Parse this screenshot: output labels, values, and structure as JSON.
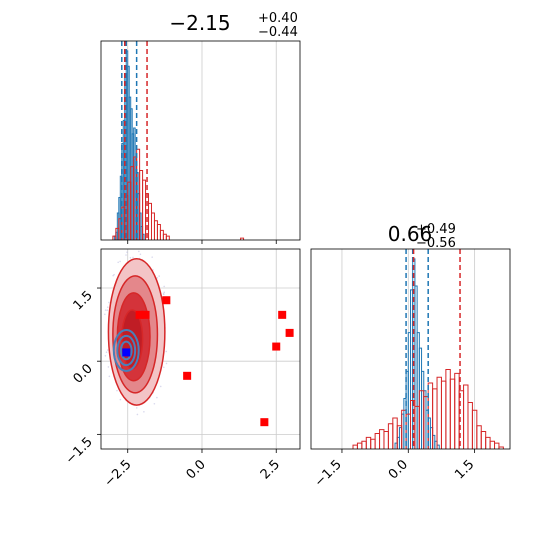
{
  "chart_data": [
    {
      "panel": "marginal-x",
      "type": "histogram",
      "title": {
        "value": "−2.15",
        "plus": "+0.40",
        "minus": "−0.44"
      },
      "xlim": [
        -3.4,
        3.3
      ],
      "xticks": [
        -2.5,
        0.0,
        2.5
      ],
      "series": [
        {
          "color": "#1f77b4",
          "bins": [
            {
              "x": -2.95,
              "w": 0.05,
              "h": 0.02
            },
            {
              "x": -2.9,
              "w": 0.05,
              "h": 0.04
            },
            {
              "x": -2.85,
              "w": 0.05,
              "h": 0.14
            },
            {
              "x": -2.8,
              "w": 0.05,
              "h": 0.22
            },
            {
              "x": -2.75,
              "w": 0.05,
              "h": 0.33
            },
            {
              "x": -2.7,
              "w": 0.05,
              "h": 0.5
            },
            {
              "x": -2.65,
              "w": 0.05,
              "h": 0.62
            },
            {
              "x": -2.6,
              "w": 0.05,
              "h": 0.85
            },
            {
              "x": -2.55,
              "w": 0.05,
              "h": 0.98
            },
            {
              "x": -2.5,
              "w": 0.05,
              "h": 0.9
            },
            {
              "x": -2.45,
              "w": 0.05,
              "h": 0.74
            },
            {
              "x": -2.4,
              "w": 0.05,
              "h": 0.68
            },
            {
              "x": -2.35,
              "w": 0.05,
              "h": 0.55
            },
            {
              "x": -2.3,
              "w": 0.05,
              "h": 0.58
            },
            {
              "x": -2.25,
              "w": 0.05,
              "h": 0.42
            },
            {
              "x": -2.2,
              "w": 0.05,
              "h": 0.35
            },
            {
              "x": -2.15,
              "w": 0.05,
              "h": 0.24
            },
            {
              "x": -2.1,
              "w": 0.05,
              "h": 0.14
            },
            {
              "x": -2.05,
              "w": 0.05,
              "h": 0.07
            },
            {
              "x": -2.0,
              "w": 0.05,
              "h": 0.03
            }
          ]
        },
        {
          "color": "#d62728",
          "bins": [
            {
              "x": -3.0,
              "w": 0.1,
              "h": 0.02
            },
            {
              "x": -2.9,
              "w": 0.1,
              "h": 0.06
            },
            {
              "x": -2.8,
              "w": 0.1,
              "h": 0.11
            },
            {
              "x": -2.7,
              "w": 0.1,
              "h": 0.17
            },
            {
              "x": -2.6,
              "w": 0.1,
              "h": 0.23
            },
            {
              "x": -2.5,
              "w": 0.1,
              "h": 0.3
            },
            {
              "x": -2.4,
              "w": 0.1,
              "h": 0.38
            },
            {
              "x": -2.3,
              "w": 0.1,
              "h": 0.43
            },
            {
              "x": -2.2,
              "w": 0.1,
              "h": 0.47
            },
            {
              "x": -2.1,
              "w": 0.1,
              "h": 0.36
            },
            {
              "x": -2.0,
              "w": 0.1,
              "h": 0.31
            },
            {
              "x": -1.9,
              "w": 0.1,
              "h": 0.24
            },
            {
              "x": -1.8,
              "w": 0.1,
              "h": 0.19
            },
            {
              "x": -1.7,
              "w": 0.1,
              "h": 0.14
            },
            {
              "x": -1.6,
              "w": 0.1,
              "h": 0.1
            },
            {
              "x": -1.5,
              "w": 0.1,
              "h": 0.08
            },
            {
              "x": -1.4,
              "w": 0.1,
              "h": 0.05
            },
            {
              "x": -1.3,
              "w": 0.1,
              "h": 0.03
            },
            {
              "x": -1.2,
              "w": 0.1,
              "h": 0.02
            },
            {
              "x": 1.3,
              "w": 0.1,
              "h": 0.01
            }
          ]
        }
      ],
      "vlines": [
        {
          "x": -2.7,
          "color": "#1f77b4"
        },
        {
          "x": -2.55,
          "color": "#1f77b4"
        },
        {
          "x": -2.2,
          "color": "#1f77b4"
        },
        {
          "x": -2.6,
          "color": "#d62728"
        },
        {
          "x": -1.85,
          "color": "#d62728"
        }
      ]
    },
    {
      "panel": "marginal-y",
      "type": "histogram",
      "title": {
        "value": "0.66",
        "plus": "+0.49",
        "minus": "−0.56"
      },
      "xlim": [
        -2.2,
        2.3
      ],
      "xticks": [
        -1.5,
        0.0,
        1.5
      ],
      "series": [
        {
          "color": "#1f77b4",
          "bins": [
            {
              "x": -0.3,
              "w": 0.05,
              "h": 0.03
            },
            {
              "x": -0.25,
              "w": 0.05,
              "h": 0.06
            },
            {
              "x": -0.2,
              "w": 0.05,
              "h": 0.11
            },
            {
              "x": -0.15,
              "w": 0.05,
              "h": 0.18
            },
            {
              "x": -0.1,
              "w": 0.05,
              "h": 0.26
            },
            {
              "x": -0.05,
              "w": 0.05,
              "h": 0.4
            },
            {
              "x": 0.0,
              "w": 0.05,
              "h": 0.6
            },
            {
              "x": 0.05,
              "w": 0.05,
              "h": 0.82
            },
            {
              "x": 0.1,
              "w": 0.05,
              "h": 0.98
            },
            {
              "x": 0.15,
              "w": 0.05,
              "h": 0.84
            },
            {
              "x": 0.2,
              "w": 0.05,
              "h": 0.6
            },
            {
              "x": 0.25,
              "w": 0.05,
              "h": 0.52
            },
            {
              "x": 0.3,
              "w": 0.05,
              "h": 0.4
            },
            {
              "x": 0.35,
              "w": 0.05,
              "h": 0.3
            },
            {
              "x": 0.4,
              "w": 0.05,
              "h": 0.2
            },
            {
              "x": 0.45,
              "w": 0.05,
              "h": 0.16
            },
            {
              "x": 0.5,
              "w": 0.05,
              "h": 0.11
            },
            {
              "x": 0.55,
              "w": 0.05,
              "h": 0.07
            },
            {
              "x": 0.6,
              "w": 0.05,
              "h": 0.04
            },
            {
              "x": 0.65,
              "w": 0.05,
              "h": 0.02
            }
          ]
        },
        {
          "color": "#d62728",
          "bins": [
            {
              "x": -1.25,
              "w": 0.1,
              "h": 0.02
            },
            {
              "x": -1.15,
              "w": 0.1,
              "h": 0.03
            },
            {
              "x": -1.05,
              "w": 0.1,
              "h": 0.04
            },
            {
              "x": -0.95,
              "w": 0.1,
              "h": 0.06
            },
            {
              "x": -0.85,
              "w": 0.1,
              "h": 0.05
            },
            {
              "x": -0.75,
              "w": 0.1,
              "h": 0.08
            },
            {
              "x": -0.65,
              "w": 0.1,
              "h": 0.1
            },
            {
              "x": -0.55,
              "w": 0.1,
              "h": 0.09
            },
            {
              "x": -0.45,
              "w": 0.1,
              "h": 0.13
            },
            {
              "x": -0.35,
              "w": 0.1,
              "h": 0.16
            },
            {
              "x": -0.25,
              "w": 0.1,
              "h": 0.12
            },
            {
              "x": -0.15,
              "w": 0.1,
              "h": 0.2
            },
            {
              "x": -0.05,
              "w": 0.1,
              "h": 0.18
            },
            {
              "x": 0.05,
              "w": 0.1,
              "h": 0.25
            },
            {
              "x": 0.15,
              "w": 0.1,
              "h": 0.22
            },
            {
              "x": 0.25,
              "w": 0.1,
              "h": 0.3
            },
            {
              "x": 0.35,
              "w": 0.1,
              "h": 0.27
            },
            {
              "x": 0.45,
              "w": 0.1,
              "h": 0.34
            },
            {
              "x": 0.55,
              "w": 0.1,
              "h": 0.31
            },
            {
              "x": 0.65,
              "w": 0.1,
              "h": 0.37
            },
            {
              "x": 0.75,
              "w": 0.1,
              "h": 0.35
            },
            {
              "x": 0.85,
              "w": 0.1,
              "h": 0.41
            },
            {
              "x": 0.95,
              "w": 0.1,
              "h": 0.36
            },
            {
              "x": 1.05,
              "w": 0.1,
              "h": 0.39
            },
            {
              "x": 1.15,
              "w": 0.1,
              "h": 0.3
            },
            {
              "x": 1.25,
              "w": 0.1,
              "h": 0.33
            },
            {
              "x": 1.35,
              "w": 0.1,
              "h": 0.24
            },
            {
              "x": 1.45,
              "w": 0.1,
              "h": 0.2
            },
            {
              "x": 1.55,
              "w": 0.1,
              "h": 0.12
            },
            {
              "x": 1.65,
              "w": 0.1,
              "h": 0.09
            },
            {
              "x": 1.75,
              "w": 0.1,
              "h": 0.06
            },
            {
              "x": 1.85,
              "w": 0.1,
              "h": 0.04
            },
            {
              "x": 1.95,
              "w": 0.1,
              "h": 0.03
            },
            {
              "x": 2.05,
              "w": 0.1,
              "h": 0.01
            }
          ]
        }
      ],
      "vlines": [
        {
          "x": -0.05,
          "color": "#1f77b4"
        },
        {
          "x": 0.1,
          "color": "#1f77b4"
        },
        {
          "x": 0.45,
          "color": "#1f77b4"
        },
        {
          "x": 0.12,
          "color": "#d62728"
        },
        {
          "x": 1.17,
          "color": "#d62728"
        }
      ]
    },
    {
      "panel": "joint",
      "type": "scatter",
      "xlim": [
        -3.4,
        3.3
      ],
      "ylim": [
        -1.8,
        2.3
      ],
      "xticks": [
        -2.5,
        0.0,
        2.5
      ],
      "yticks": [
        -1.5,
        0.0,
        1.5
      ],
      "red_contours": [
        {
          "cx": -2.2,
          "cy": 0.6,
          "rx": 0.95,
          "ry": 1.5,
          "fill": "#f3c4c6"
        },
        {
          "cx": -2.25,
          "cy": 0.55,
          "rx": 0.75,
          "ry": 1.2,
          "fill": "#e4878b"
        },
        {
          "cx": -2.3,
          "cy": 0.5,
          "rx": 0.55,
          "ry": 0.9,
          "fill": "#d4333a"
        },
        {
          "cx": -2.35,
          "cy": 0.45,
          "rx": 0.35,
          "ry": 0.6,
          "fill": "#c01d25"
        }
      ],
      "blue_contours": [
        {
          "cx": -2.55,
          "cy": 0.22,
          "rx": 0.42,
          "ry": 0.42
        },
        {
          "cx": -2.55,
          "cy": 0.22,
          "rx": 0.3,
          "ry": 0.3
        },
        {
          "cx": -2.55,
          "cy": 0.22,
          "rx": 0.18,
          "ry": 0.18
        }
      ],
      "red_markers": [
        {
          "x": -1.2,
          "y": 1.25
        },
        {
          "x": -2.1,
          "y": 0.95
        },
        {
          "x": -1.9,
          "y": 0.95
        },
        {
          "x": -0.5,
          "y": -0.3
        },
        {
          "x": 2.7,
          "y": 0.95
        },
        {
          "x": 2.5,
          "y": 0.3
        },
        {
          "x": 2.95,
          "y": 0.58
        },
        {
          "x": 2.1,
          "y": -1.25
        }
      ],
      "blue_marker": {
        "x": -2.55,
        "y": 0.18
      }
    }
  ]
}
